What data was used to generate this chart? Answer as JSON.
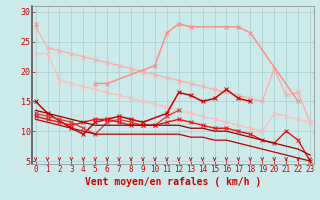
{
  "bg_color": "#cceaea",
  "grid_color": "#aacccc",
  "xlabel": "Vent moyen/en rafales ( km/h )",
  "xlabel_color": "#cc0000",
  "xlabel_fontsize": 7,
  "yticks": [
    5,
    10,
    15,
    20,
    25,
    30
  ],
  "xticks": [
    0,
    1,
    2,
    3,
    4,
    5,
    6,
    7,
    8,
    9,
    10,
    11,
    12,
    13,
    14,
    15,
    16,
    17,
    18,
    19,
    20,
    21,
    22,
    23
  ],
  "xlim": [
    -0.3,
    23.3
  ],
  "ylim": [
    4.5,
    31
  ],
  "tick_color": "#cc0000",
  "ytick_fontsize": 6,
  "xtick_fontsize": 5.5,
  "series": [
    {
      "x": [
        0,
        1,
        2,
        3,
        4,
        5,
        6,
        7,
        8,
        9,
        10,
        11,
        12,
        13,
        14,
        15,
        16,
        17,
        18,
        19,
        20,
        21,
        22,
        23
      ],
      "y": [
        27.5,
        24.0,
        23.5,
        23.0,
        22.5,
        22.0,
        21.5,
        21.0,
        20.5,
        20.0,
        19.5,
        19.0,
        18.5,
        18.0,
        17.5,
        17.0,
        16.5,
        16.0,
        15.5,
        15.0,
        20.5,
        16.0,
        16.5,
        11.5
      ],
      "color": "#ffaaaa",
      "lw": 0.9,
      "marker": "x",
      "ms": 2.5
    },
    {
      "x": [
        0,
        1,
        2,
        3,
        4,
        5,
        6,
        7,
        8,
        9,
        10,
        11,
        12,
        13,
        14,
        15,
        16,
        17,
        18,
        19,
        20,
        21,
        22,
        23
      ],
      "y": [
        23.0,
        23.0,
        18.5,
        18.0,
        17.5,
        17.0,
        16.5,
        16.0,
        15.5,
        15.0,
        14.5,
        14.0,
        13.5,
        13.0,
        12.5,
        12.0,
        11.5,
        11.0,
        10.5,
        10.0,
        13.0,
        12.5,
        12.0,
        11.5
      ],
      "color": "#ffbbbb",
      "lw": 0.9,
      "marker": "x",
      "ms": 2.5
    },
    {
      "x": [
        0,
        1,
        5,
        6,
        10,
        11,
        12,
        13,
        16,
        17,
        18,
        22
      ],
      "y": [
        28.0,
        null,
        18.0,
        18.0,
        21.0,
        26.5,
        28.0,
        27.5,
        27.5,
        27.5,
        26.5,
        15.0
      ],
      "color": "#ff8888",
      "lw": 1.0,
      "marker": "x",
      "ms": 2.5
    },
    {
      "x": [
        0,
        1,
        3,
        4,
        5,
        6,
        7,
        8,
        9,
        11,
        12,
        13,
        14,
        15,
        16,
        17,
        18
      ],
      "y": [
        15.0,
        13.0,
        10.5,
        9.5,
        11.5,
        12.0,
        12.5,
        12.0,
        11.5,
        13.0,
        16.5,
        16.0,
        15.0,
        15.5,
        17.0,
        15.5,
        15.0
      ],
      "color": "#cc0000",
      "lw": 1.1,
      "marker": "x",
      "ms": 2.5
    },
    {
      "x": [
        0,
        1,
        2,
        3,
        4,
        5,
        6,
        7,
        8,
        9,
        10,
        11,
        12
      ],
      "y": [
        13.0,
        12.5,
        12.0,
        11.5,
        10.5,
        9.5,
        11.5,
        12.0,
        11.5,
        11.0,
        11.0,
        12.5,
        13.5
      ],
      "color": "#dd3333",
      "lw": 0.9,
      "marker": "x",
      "ms": 2.5
    },
    {
      "x": [
        0,
        1,
        2,
        3,
        4,
        5,
        6,
        7,
        8,
        9,
        10,
        11,
        12,
        13,
        14,
        15,
        16,
        17,
        18,
        19,
        20,
        21,
        22,
        23
      ],
      "y": [
        12.5,
        12.0,
        11.5,
        11.0,
        11.5,
        12.0,
        12.0,
        11.5,
        11.0,
        11.0,
        11.0,
        11.5,
        12.0,
        11.5,
        11.0,
        10.5,
        10.5,
        10.0,
        9.5,
        8.5,
        8.0,
        10.0,
        8.5,
        5.0
      ],
      "color": "#ee1111",
      "lw": 1.0,
      "marker": "x",
      "ms": 2.5
    },
    {
      "x": [
        0,
        1,
        2,
        3,
        4,
        5,
        6,
        7,
        8,
        9,
        10,
        11,
        12,
        13,
        14,
        15,
        16,
        17,
        18,
        19,
        20,
        21,
        22,
        23
      ],
      "y": [
        12.0,
        11.5,
        11.0,
        10.5,
        10.0,
        9.5,
        9.5,
        9.5,
        9.5,
        9.5,
        9.5,
        9.5,
        9.5,
        9.0,
        9.0,
        8.5,
        8.5,
        8.0,
        7.5,
        7.0,
        6.5,
        6.0,
        5.5,
        5.0
      ],
      "color": "#bb0000",
      "lw": 0.9,
      "marker": null,
      "ms": 0
    },
    {
      "x": [
        0,
        1,
        2,
        3,
        4,
        5,
        6,
        7,
        8,
        9,
        10,
        11,
        12,
        13,
        14,
        15,
        16,
        17,
        18,
        19,
        20,
        21,
        22,
        23
      ],
      "y": [
        13.5,
        13.0,
        12.5,
        12.0,
        11.5,
        11.0,
        11.0,
        11.0,
        11.0,
        11.0,
        11.0,
        11.0,
        11.0,
        10.5,
        10.5,
        10.0,
        10.0,
        9.5,
        9.0,
        8.5,
        8.0,
        7.5,
        7.0,
        6.0
      ],
      "color": "#990000",
      "lw": 0.9,
      "marker": null,
      "ms": 0
    }
  ],
  "arrow_color": "#cc0000"
}
